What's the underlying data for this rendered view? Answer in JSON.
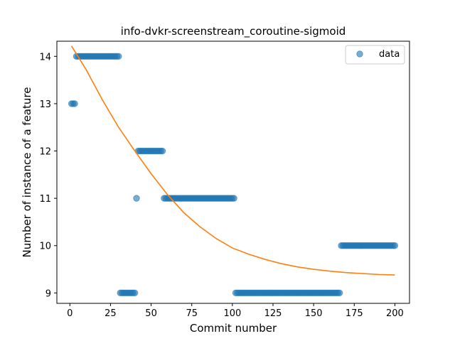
{
  "chart_data": {
    "type": "scatter",
    "title": "info-dvkr-screenstream_coroutine-sigmoid",
    "xlabel": "Commit number",
    "ylabel": "Number of instance of a feature",
    "xlim": [
      -8,
      209
    ],
    "ylim": [
      8.78,
      14.32
    ],
    "xticks": [
      0,
      25,
      50,
      75,
      100,
      125,
      150,
      175,
      200
    ],
    "yticks": [
      9,
      10,
      11,
      12,
      13,
      14
    ],
    "grid": false,
    "legend": {
      "placement": "top-right",
      "entries": [
        "data"
      ]
    },
    "colors": {
      "data": "#1f77b4",
      "fit": "#ff7f0e"
    },
    "segments": [
      {
        "x_start": 1,
        "x_end": 3,
        "y": 13
      },
      {
        "x_start": 4,
        "x_end": 30,
        "y": 14
      },
      {
        "x_start": 31,
        "x_end": 40,
        "y": 9
      },
      {
        "x_start": 41,
        "x_end": 41,
        "y": 11
      },
      {
        "x_start": 42,
        "x_end": 57,
        "y": 12
      },
      {
        "x_start": 58,
        "x_end": 101,
        "y": 11
      },
      {
        "x_start": 102,
        "x_end": 166,
        "y": 9
      },
      {
        "x_start": 167,
        "x_end": 200,
        "y": 10
      }
    ],
    "series": [
      {
        "name": "data",
        "kind": "scatter",
        "x": [
          1,
          2,
          3,
          4,
          5,
          6,
          7,
          8,
          9,
          10,
          11,
          12,
          13,
          14,
          15,
          16,
          17,
          18,
          19,
          20,
          21,
          22,
          23,
          24,
          25,
          26,
          27,
          28,
          29,
          30,
          31,
          32,
          33,
          34,
          35,
          36,
          37,
          38,
          39,
          40,
          41,
          42,
          43,
          44,
          45,
          46,
          47,
          48,
          49,
          50,
          51,
          52,
          53,
          54,
          55,
          56,
          57,
          58,
          59,
          60,
          61,
          62,
          63,
          64,
          65,
          66,
          67,
          68,
          69,
          70,
          71,
          72,
          73,
          74,
          75,
          76,
          77,
          78,
          79,
          80,
          81,
          82,
          83,
          84,
          85,
          86,
          87,
          88,
          89,
          90,
          91,
          92,
          93,
          94,
          95,
          96,
          97,
          98,
          99,
          100,
          101,
          102,
          103,
          104,
          105,
          106,
          107,
          108,
          109,
          110,
          111,
          112,
          113,
          114,
          115,
          116,
          117,
          118,
          119,
          120,
          121,
          122,
          123,
          124,
          125,
          126,
          127,
          128,
          129,
          130,
          131,
          132,
          133,
          134,
          135,
          136,
          137,
          138,
          139,
          140,
          141,
          142,
          143,
          144,
          145,
          146,
          147,
          148,
          149,
          150,
          151,
          152,
          153,
          154,
          155,
          156,
          157,
          158,
          159,
          160,
          161,
          162,
          163,
          164,
          165,
          166,
          167,
          168,
          169,
          170,
          171,
          172,
          173,
          174,
          175,
          176,
          177,
          178,
          179,
          180,
          181,
          182,
          183,
          184,
          185,
          186,
          187,
          188,
          189,
          190,
          191,
          192,
          193,
          194,
          195,
          196,
          197,
          198,
          199,
          200
        ],
        "y": [
          13,
          13,
          13,
          14,
          14,
          14,
          14,
          14,
          14,
          14,
          14,
          14,
          14,
          14,
          14,
          14,
          14,
          14,
          14,
          14,
          14,
          14,
          14,
          14,
          14,
          14,
          14,
          14,
          14,
          14,
          9,
          9,
          9,
          9,
          9,
          9,
          9,
          9,
          9,
          9,
          11,
          12,
          12,
          12,
          12,
          12,
          12,
          12,
          12,
          12,
          12,
          12,
          12,
          12,
          12,
          12,
          12,
          11,
          11,
          11,
          11,
          11,
          11,
          11,
          11,
          11,
          11,
          11,
          11,
          11,
          11,
          11,
          11,
          11,
          11,
          11,
          11,
          11,
          11,
          11,
          11,
          11,
          11,
          11,
          11,
          11,
          11,
          11,
          11,
          11,
          11,
          11,
          11,
          11,
          11,
          11,
          11,
          11,
          11,
          11,
          11,
          9,
          9,
          9,
          9,
          9,
          9,
          9,
          9,
          9,
          9,
          9,
          9,
          9,
          9,
          9,
          9,
          9,
          9,
          9,
          9,
          9,
          9,
          9,
          9,
          9,
          9,
          9,
          9,
          9,
          9,
          9,
          9,
          9,
          9,
          9,
          9,
          9,
          9,
          9,
          9,
          9,
          9,
          9,
          9,
          9,
          9,
          9,
          9,
          9,
          9,
          9,
          9,
          9,
          9,
          9,
          9,
          9,
          9,
          9,
          9,
          9,
          9,
          9,
          9,
          9,
          10,
          10,
          10,
          10,
          10,
          10,
          10,
          10,
          10,
          10,
          10,
          10,
          10,
          10,
          10,
          10,
          10,
          10,
          10,
          10,
          10,
          10,
          10,
          10,
          10,
          10,
          10,
          10,
          10,
          10,
          10,
          10,
          10,
          10
        ]
      },
      {
        "kind": "line",
        "x": [
          1,
          10,
          20,
          30,
          40,
          50,
          60,
          70,
          80,
          90,
          100,
          110,
          120,
          130,
          140,
          150,
          160,
          170,
          180,
          190,
          200
        ],
        "y": [
          14.22,
          13.72,
          13.08,
          12.5,
          12.0,
          11.52,
          11.08,
          10.7,
          10.4,
          10.15,
          9.95,
          9.82,
          9.71,
          9.62,
          9.55,
          9.5,
          9.46,
          9.43,
          9.41,
          9.39,
          9.38
        ]
      }
    ]
  }
}
